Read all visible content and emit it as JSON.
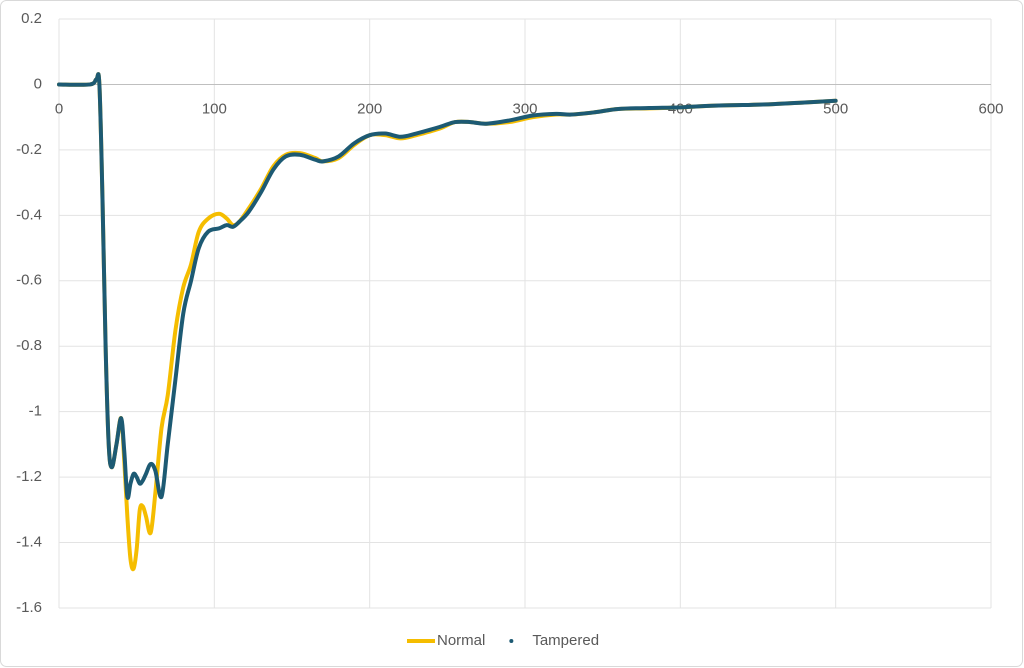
{
  "chart_data": {
    "type": "line",
    "x": [
      0,
      20,
      24,
      26,
      28,
      30,
      32,
      34,
      37,
      40,
      42,
      44,
      46,
      48,
      50,
      52,
      54,
      56,
      59,
      62,
      66,
      70,
      75,
      80,
      85,
      90,
      96,
      103,
      108,
      112,
      116,
      122,
      130,
      138,
      146,
      155,
      165,
      170,
      180,
      190,
      200,
      210,
      220,
      230,
      245,
      255,
      265,
      275,
      290,
      305,
      320,
      330,
      345,
      360,
      380,
      400,
      420,
      440,
      460,
      480,
      500
    ],
    "series": [
      {
        "name": "Normal",
        "color": "#f5bd00",
        "values": [
          0,
          0,
          0.015,
          0,
          -0.35,
          -0.8,
          -1.1,
          -1.17,
          -1.1,
          -1.02,
          -1.15,
          -1.32,
          -1.45,
          -1.48,
          -1.42,
          -1.3,
          -1.29,
          -1.32,
          -1.37,
          -1.25,
          -1.05,
          -0.95,
          -0.75,
          -0.62,
          -0.55,
          -0.45,
          -0.41,
          -0.395,
          -0.41,
          -0.43,
          -0.42,
          -0.38,
          -0.32,
          -0.25,
          -0.215,
          -0.21,
          -0.225,
          -0.235,
          -0.225,
          -0.185,
          -0.155,
          -0.155,
          -0.165,
          -0.155,
          -0.135,
          -0.115,
          -0.115,
          -0.12,
          -0.115,
          -0.1,
          -0.092,
          -0.092,
          -0.085,
          -0.075,
          -0.073,
          -0.07,
          -0.065,
          -0.063,
          -0.06,
          -0.055,
          -0.05
        ]
      },
      {
        "name": "Tampered",
        "color": "#1d5a73",
        "values": [
          0,
          0,
          0.015,
          0,
          -0.35,
          -0.8,
          -1.1,
          -1.17,
          -1.1,
          -1.02,
          -1.12,
          -1.26,
          -1.22,
          -1.19,
          -1.2,
          -1.22,
          -1.21,
          -1.19,
          -1.16,
          -1.18,
          -1.26,
          -1.1,
          -0.9,
          -0.7,
          -0.6,
          -0.5,
          -0.45,
          -0.44,
          -0.43,
          -0.435,
          -0.42,
          -0.39,
          -0.33,
          -0.26,
          -0.22,
          -0.215,
          -0.23,
          -0.235,
          -0.22,
          -0.18,
          -0.155,
          -0.15,
          -0.16,
          -0.15,
          -0.13,
          -0.115,
          -0.115,
          -0.12,
          -0.11,
          -0.095,
          -0.09,
          -0.092,
          -0.085,
          -0.075,
          -0.072,
          -0.07,
          -0.065,
          -0.063,
          -0.06,
          -0.055,
          -0.05
        ]
      }
    ],
    "xlim": [
      0,
      600
    ],
    "xticks": [
      0,
      100,
      200,
      300,
      400,
      500,
      600
    ],
    "ylim": [
      -1.6,
      0.2
    ],
    "yticks": [
      0.2,
      0,
      -0.2,
      -0.4,
      -0.6,
      -0.8,
      -1,
      -1.2,
      -1.4,
      -1.6
    ],
    "grid": true,
    "legend": "bottom"
  }
}
